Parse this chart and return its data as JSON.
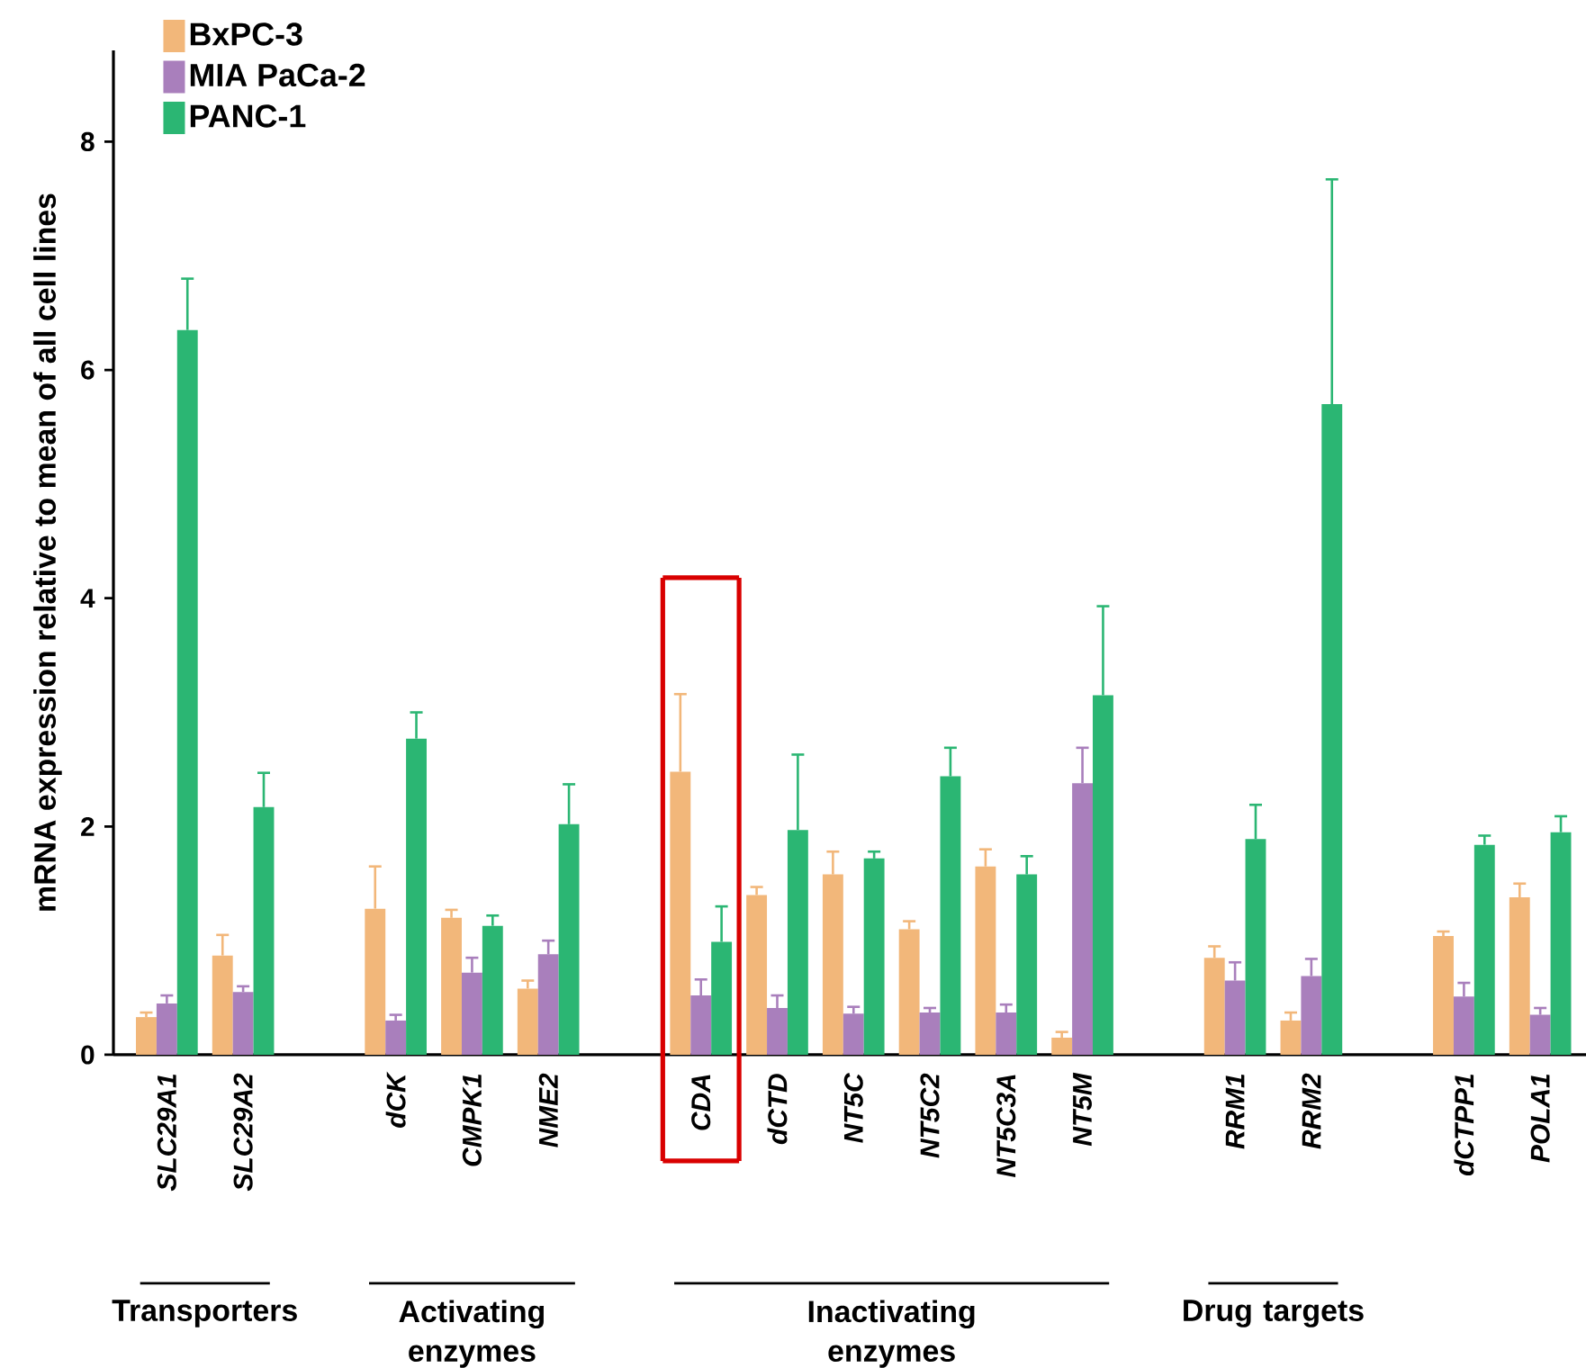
{
  "chart_data": {
    "type": "bar",
    "ylabel": "mRNA expression relative to mean of all cell lines",
    "categories": [
      "SLC29A1",
      "SLC29A2",
      null,
      "dCK",
      "CMPK1",
      "NME2",
      null,
      "CDA",
      "dCTD",
      "NT5C",
      "NT5C2",
      "NT5C3A",
      "NT5M",
      null,
      "RRM1",
      "RRM2",
      null,
      "dCTPP1",
      "POLA1"
    ],
    "series": [
      {
        "name": "BxPC-3",
        "color": "#f2b77a",
        "values": [
          0.33,
          0.87,
          null,
          1.28,
          1.2,
          0.58,
          null,
          2.48,
          1.4,
          1.58,
          1.1,
          1.65,
          0.15,
          null,
          0.85,
          0.3,
          null,
          1.04,
          1.38
        ],
        "errors": [
          [
            0.33,
            0.37
          ],
          [
            0.87,
            1.05
          ],
          null,
          [
            1.28,
            1.65
          ],
          [
            1.2,
            1.27
          ],
          [
            0.58,
            0.65
          ],
          null,
          [
            2.48,
            3.16
          ],
          [
            1.4,
            1.47
          ],
          [
            1.58,
            1.78
          ],
          [
            1.1,
            1.17
          ],
          [
            1.65,
            1.8
          ],
          [
            0.15,
            0.2
          ],
          null,
          [
            0.85,
            0.95
          ],
          [
            0.3,
            0.37
          ],
          null,
          [
            1.04,
            1.08
          ],
          [
            1.38,
            1.5
          ]
        ]
      },
      {
        "name": "MIA PaCa-2",
        "color": "#a97fbc",
        "values": [
          0.45,
          0.55,
          null,
          0.3,
          0.72,
          0.88,
          null,
          0.52,
          0.41,
          0.36,
          0.37,
          0.37,
          2.38,
          null,
          0.65,
          0.69,
          null,
          0.51,
          0.35
        ],
        "errors": [
          [
            0.45,
            0.52
          ],
          [
            0.55,
            0.6
          ],
          null,
          [
            0.3,
            0.35
          ],
          [
            0.72,
            0.85
          ],
          [
            0.88,
            1.0
          ],
          null,
          [
            0.52,
            0.66
          ],
          [
            0.41,
            0.52
          ],
          [
            0.36,
            0.42
          ],
          [
            0.37,
            0.41
          ],
          [
            0.37,
            0.44
          ],
          [
            2.38,
            2.69
          ],
          null,
          [
            0.65,
            0.81
          ],
          [
            0.69,
            0.84
          ],
          null,
          [
            0.51,
            0.63
          ],
          [
            0.35,
            0.41
          ]
        ]
      },
      {
        "name": "PANC-1",
        "color": "#2bb673",
        "values": [
          6.35,
          2.17,
          null,
          2.77,
          1.13,
          2.02,
          null,
          0.99,
          1.97,
          1.72,
          2.44,
          1.58,
          3.15,
          null,
          1.89,
          5.7,
          null,
          1.84,
          1.95
        ],
        "errors": [
          [
            6.35,
            6.8
          ],
          [
            2.17,
            2.47
          ],
          null,
          [
            2.77,
            3.0
          ],
          [
            1.13,
            1.22
          ],
          [
            2.02,
            2.37
          ],
          null,
          [
            0.99,
            1.3
          ],
          [
            1.97,
            2.63
          ],
          [
            1.72,
            1.78
          ],
          [
            2.44,
            2.69
          ],
          [
            1.58,
            1.74
          ],
          [
            3.15,
            3.93
          ],
          null,
          [
            1.89,
            2.19
          ],
          [
            5.7,
            7.67
          ],
          null,
          [
            1.84,
            1.92
          ],
          [
            1.95,
            2.09
          ]
        ]
      }
    ],
    "ylim": [
      0,
      8.8
    ],
    "yticks": [
      0,
      2,
      4,
      6,
      8
    ],
    "legend": "top left",
    "annotations": [
      "Transporters",
      "Activating enzymes",
      "Inactivating enzymes",
      "Drug targets"
    ]
  }
}
